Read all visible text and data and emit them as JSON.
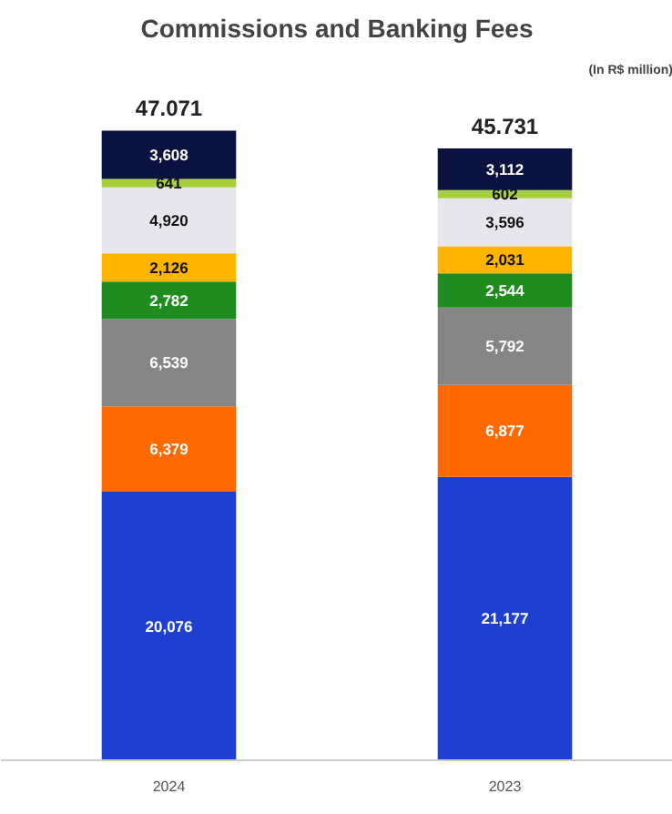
{
  "chart_data": {
    "type": "bar",
    "title": "Commissions and Banking Fees",
    "annotations": [
      "(In R$ million)",
      {
        "text": "47.071",
        "x": "2024",
        "y": 47071
      },
      {
        "text": "45.731",
        "x": "2023",
        "y": 45731
      }
    ],
    "categories": [
      "2024",
      "2023"
    ],
    "stacked": true,
    "tick_labels": "x",
    "series": [
      {
        "color": "#1f3fd0",
        "values": [
          20076,
          21177
        ],
        "value_labels": [
          "20,076",
          "21,177"
        ]
      },
      {
        "color": "#ff6a00",
        "values": [
          6379,
          6877
        ],
        "value_labels": [
          "6,379",
          "6,877"
        ]
      },
      {
        "color": "#858585",
        "values": [
          6539,
          5792
        ],
        "value_labels": [
          "6,539",
          "5,792"
        ]
      },
      {
        "color": "#1e8c1e",
        "values": [
          2782,
          2544
        ],
        "value_labels": [
          "2,782",
          "2,544"
        ]
      },
      {
        "color": "#ffb400",
        "values": [
          2126,
          2031
        ],
        "value_labels": [
          "2,126",
          "2,031"
        ]
      },
      {
        "color": "#e6e6ec",
        "values": [
          4920,
          3596
        ],
        "value_labels": [
          "4,920",
          "3,596"
        ]
      },
      {
        "color": "#a6cf3c",
        "values": [
          641,
          602
        ],
        "value_labels": [
          "641",
          "602"
        ]
      },
      {
        "color": "#0b1240",
        "values": [
          3608,
          3112
        ],
        "value_labels": [
          "3,608",
          "3,112"
        ]
      }
    ]
  }
}
